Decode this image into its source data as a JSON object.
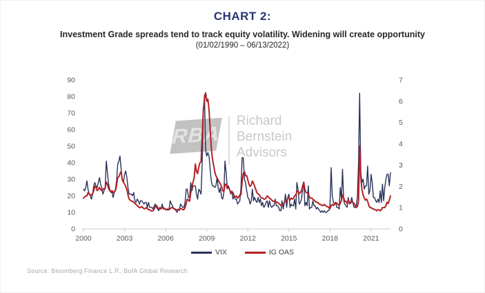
{
  "header": {
    "title": "CHART 2:",
    "subtitle": "Investment Grade spreads tend to track equity volatility. Widening will create opportunity",
    "date_range": "(01/02/1990 – 06/13/2022)"
  },
  "watermark": {
    "logo_text": "RBA",
    "line1": "Richard",
    "line2": "Bernstein",
    "line3": "Advisors"
  },
  "footer": {
    "source": "Source:  Bloomberg Finance L.P., BofA Global Research"
  },
  "colors": {
    "title_navy": "#283575",
    "vix_navy": "#283158",
    "ig_oas_red": "#b32025",
    "axis_text": "#595959",
    "axis_line": "#c9c9c9",
    "watermark_gray": "#c8c8c8",
    "source_gray": "#a9a9a9"
  },
  "chart_data": {
    "type": "line",
    "title": "CHART 2:",
    "subtitle": "Investment Grade spreads tend to track equity volatility. Widening will create opportunity",
    "date_range_label": "(01/02/1990 – 06/13/2022)",
    "x_start_year": 2000,
    "x_end_label": "2022-06",
    "x_frequency": "monthly",
    "x_tick_labels": [
      "2000",
      "2003",
      "2006",
      "2009",
      "2012",
      "2015",
      "2018",
      "2021"
    ],
    "grid": false,
    "legend_position": "bottom",
    "left_axis": {
      "label": "",
      "min": 0,
      "max": 90,
      "ticks": [
        0,
        10,
        20,
        30,
        40,
        50,
        60,
        70,
        80,
        90
      ]
    },
    "right_axis": {
      "label": "",
      "min": 0,
      "max": 7,
      "ticks": [
        0,
        1,
        2,
        3,
        4,
        5,
        6,
        7
      ]
    },
    "series": [
      {
        "name": "VIX",
        "axis": "left",
        "color": "#283158",
        "stroke_width": 1.4,
        "values": [
          24,
          23,
          25,
          29,
          24,
          21,
          20,
          18,
          21,
          26,
          28,
          26,
          25,
          28,
          31,
          27,
          25,
          21,
          23,
          25,
          41,
          34,
          27,
          24,
          22,
          22,
          19,
          22,
          24,
          29,
          39,
          41,
          44,
          36,
          30,
          28,
          33,
          35,
          31,
          25,
          21,
          21,
          21,
          20,
          22,
          17,
          16,
          18,
          17,
          15,
          17,
          17,
          16,
          15,
          16,
          16,
          13,
          16,
          13,
          13,
          13,
          12,
          14,
          15,
          13,
          12,
          11,
          13,
          12,
          15,
          12,
          12,
          12,
          12,
          12,
          12,
          17,
          15,
          14,
          12,
          12,
          11,
          10,
          12,
          11,
          15,
          14,
          13,
          13,
          16,
          24,
          24,
          19,
          19,
          28,
          23,
          26,
          26,
          26,
          21,
          18,
          24,
          23,
          21,
          39,
          70,
          81,
          48,
          44,
          46,
          44,
          36,
          29,
          26,
          26,
          25,
          26,
          31,
          25,
          22,
          25,
          19,
          18,
          22,
          41,
          34,
          25,
          26,
          24,
          21,
          23,
          18,
          20,
          18,
          18,
          15,
          16,
          17,
          25,
          43,
          43,
          30,
          28,
          23,
          19,
          18,
          15,
          17,
          24,
          17,
          19,
          17,
          16,
          19,
          16,
          18,
          14,
          16,
          13,
          14,
          16,
          17,
          13,
          17,
          14,
          13,
          14,
          14,
          18,
          14,
          14,
          13,
          11,
          11,
          17,
          12,
          16,
          21,
          13,
          19,
          21,
          13,
          15,
          14,
          14,
          18,
          12,
          28,
          24,
          15,
          16,
          18,
          24,
          28,
          14,
          16,
          14,
          26,
          12,
          13,
          13,
          17,
          14,
          14,
          12,
          13,
          12,
          11,
          10,
          11,
          10,
          11,
          10,
          10,
          11,
          11,
          14,
          37,
          20,
          16,
          15,
          16,
          13,
          13,
          12,
          25,
          18,
          36,
          17,
          15,
          14,
          13,
          19,
          15,
          16,
          19,
          16,
          13,
          13,
          14,
          19,
          40,
          82,
          34,
          28,
          30,
          24,
          26,
          26,
          38,
          21,
          23,
          33,
          28,
          19,
          19,
          17,
          16,
          18,
          16,
          23,
          16,
          27,
          17,
          25,
          30,
          33,
          33,
          26,
          34
        ]
      },
      {
        "name": "IG OAS",
        "axis": "right",
        "color": "#b32025",
        "stroke_width": 2,
        "values": [
          1.45,
          1.5,
          1.55,
          1.55,
          1.7,
          1.65,
          1.6,
          1.6,
          1.65,
          1.8,
          2.0,
          1.95,
          1.8,
          1.85,
          1.95,
          1.85,
          1.8,
          1.85,
          1.9,
          1.9,
          2.2,
          2.1,
          1.9,
          1.8,
          1.75,
          1.8,
          1.7,
          1.75,
          1.8,
          2.05,
          2.4,
          2.45,
          2.6,
          2.7,
          2.3,
          2.2,
          2.1,
          2.0,
          1.85,
          1.6,
          1.4,
          1.35,
          1.3,
          1.3,
          1.25,
          1.2,
          1.15,
          1.1,
          1.05,
          1.0,
          1.0,
          1.05,
          1.0,
          0.95,
          0.95,
          1.0,
          0.95,
          0.9,
          0.9,
          0.85,
          0.85,
          0.85,
          0.95,
          1.05,
          1.1,
          1.0,
          0.95,
          0.95,
          0.95,
          1.0,
          1.0,
          0.95,
          0.9,
          0.9,
          0.9,
          0.9,
          0.95,
          1.0,
          1.0,
          0.95,
          0.95,
          0.9,
          0.9,
          0.9,
          0.9,
          0.95,
          0.95,
          0.9,
          0.9,
          1.0,
          1.2,
          1.4,
          1.35,
          1.3,
          1.7,
          2.0,
          2.2,
          2.4,
          3.05,
          2.7,
          2.6,
          2.9,
          3.1,
          3.15,
          4.3,
          5.6,
          6.1,
          6.4,
          6.0,
          6.1,
          5.6,
          4.7,
          3.8,
          3.3,
          3.0,
          2.7,
          2.5,
          2.4,
          2.3,
          2.2,
          2.1,
          2.0,
          1.8,
          1.75,
          2.1,
          2.1,
          1.9,
          1.95,
          1.85,
          1.7,
          1.75,
          1.7,
          1.55,
          1.5,
          1.55,
          1.45,
          1.5,
          1.6,
          1.6,
          2.2,
          2.6,
          2.7,
          2.5,
          2.5,
          2.3,
          2.1,
          2.0,
          2.05,
          2.25,
          2.15,
          2.0,
          1.85,
          1.7,
          1.65,
          1.6,
          1.5,
          1.45,
          1.45,
          1.4,
          1.4,
          1.45,
          1.55,
          1.5,
          1.45,
          1.4,
          1.35,
          1.3,
          1.3,
          1.3,
          1.25,
          1.25,
          1.2,
          1.15,
          1.1,
          1.15,
          1.15,
          1.25,
          1.3,
          1.3,
          1.45,
          1.45,
          1.35,
          1.45,
          1.4,
          1.45,
          1.55,
          1.6,
          1.75,
          1.8,
          1.65,
          1.7,
          1.8,
          2.0,
          2.2,
          1.85,
          1.7,
          1.7,
          1.65,
          1.5,
          1.45,
          1.45,
          1.4,
          1.35,
          1.3,
          1.25,
          1.25,
          1.2,
          1.15,
          1.15,
          1.1,
          1.1,
          1.15,
          1.1,
          1.05,
          1.05,
          1.0,
          0.95,
          1.1,
          1.15,
          1.1,
          1.15,
          1.25,
          1.2,
          1.15,
          1.1,
          1.2,
          1.35,
          1.6,
          1.45,
          1.3,
          1.3,
          1.2,
          1.35,
          1.25,
          1.2,
          1.3,
          1.25,
          1.2,
          1.1,
          1.0,
          1.05,
          1.3,
          3.9,
          2.4,
          1.85,
          1.6,
          1.45,
          1.35,
          1.4,
          1.3,
          1.1,
          1.0,
          1.0,
          0.95,
          0.95,
          0.9,
          0.9,
          0.85,
          0.9,
          0.9,
          0.85,
          0.9,
          1.0,
          1.0,
          1.0,
          1.1,
          1.25,
          1.2,
          1.35,
          1.55
        ]
      }
    ]
  }
}
